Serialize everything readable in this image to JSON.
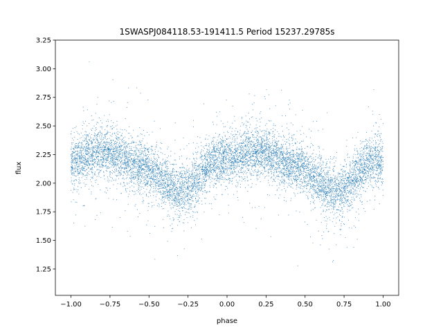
{
  "chart_data": {
    "type": "scatter",
    "title": "1SWASPJ084118.53-191411.5 Period 15237.29785s",
    "xlabel": "phase",
    "ylabel": "flux",
    "xlim": [
      -1.1,
      1.1
    ],
    "ylim": [
      1.02,
      3.25
    ],
    "x_ticks": [
      -1.0,
      -0.75,
      -0.5,
      -0.25,
      0.0,
      0.25,
      0.5,
      0.75,
      1.0
    ],
    "x_tick_labels": [
      "−1.00",
      "−0.75",
      "−0.50",
      "−0.25",
      "0.00",
      "0.25",
      "0.50",
      "0.75",
      "1.00"
    ],
    "y_ticks": [
      1.25,
      1.5,
      1.75,
      2.0,
      2.25,
      2.5,
      2.75,
      3.0,
      3.25
    ],
    "y_tick_labels": [
      "1.25",
      "1.50",
      "1.75",
      "2.00",
      "2.25",
      "2.50",
      "2.75",
      "3.00",
      "3.25"
    ],
    "grid": false,
    "legend": "none",
    "marker_color": "#1f77b4",
    "series": [
      {
        "x_range": [
          -1.0,
          1.0
        ],
        "trend_x": [
          -1.0,
          -0.8,
          -0.55,
          -0.3,
          -0.05,
          0.2,
          0.45,
          0.7,
          0.95,
          1.0
        ],
        "trend_y": [
          2.18,
          2.27,
          2.15,
          1.93,
          2.2,
          2.27,
          2.15,
          1.93,
          2.2,
          2.18
        ]
      }
    ]
  }
}
